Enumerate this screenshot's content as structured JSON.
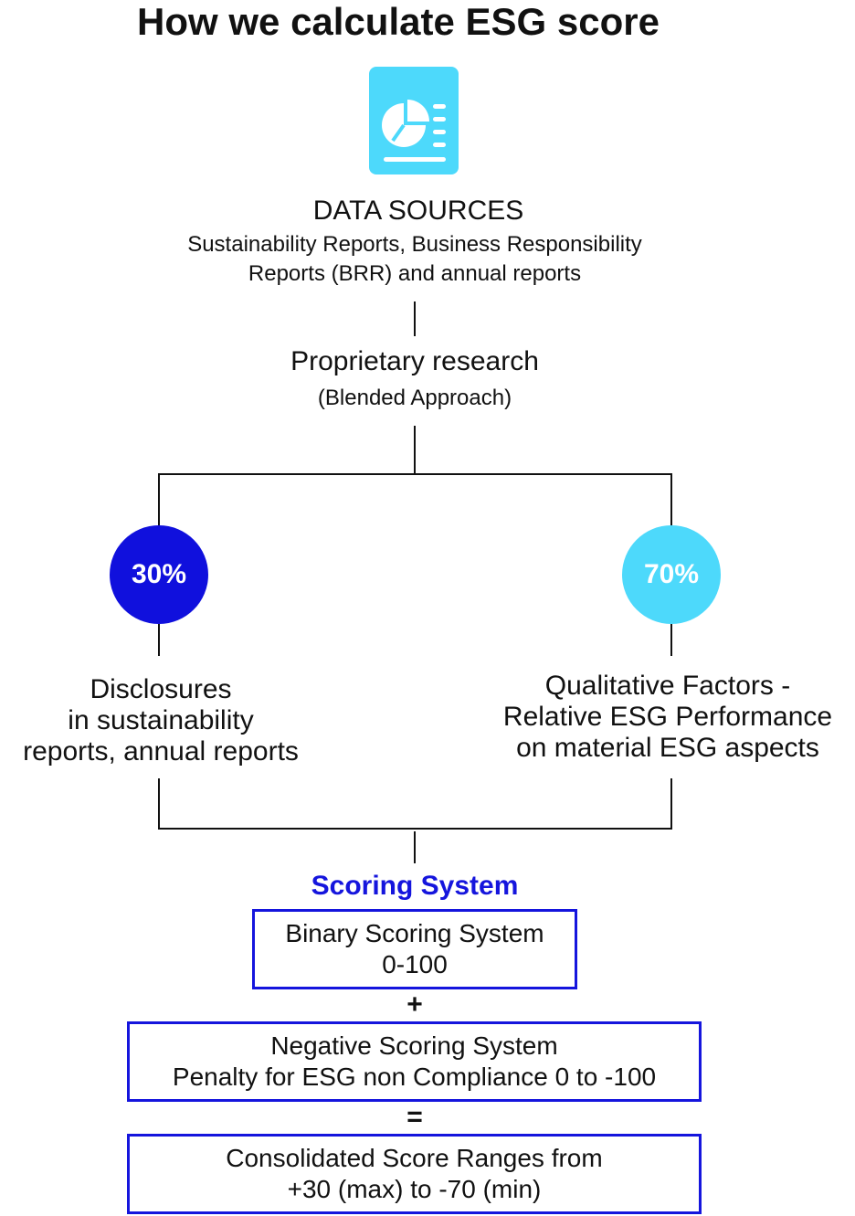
{
  "title": "How we calculate ESG score",
  "icon": {
    "name": "report-pie-chart-icon",
    "color": "#4dd9fb"
  },
  "data_sources": {
    "heading": "DATA SOURCES",
    "lines": [
      "Sustainability Reports, Business Responsibility",
      "Reports (BRR) and annual reports"
    ]
  },
  "research": {
    "heading": "Proprietary research",
    "sub": "(Blended Approach)"
  },
  "branches": {
    "left": {
      "percent": "30%",
      "color": "#1010dd",
      "lines": [
        "Disclosures",
        "in sustainability",
        "reports, annual reports"
      ]
    },
    "right": {
      "percent": "70%",
      "color": "#4dd9fb",
      "lines": [
        "Qualitative Factors -",
        "Relative ESG Performance",
        "on material ESG aspects"
      ]
    }
  },
  "scoring": {
    "title": "Scoring System",
    "title_color": "#1515dd",
    "border_color": "#1515dd",
    "binary": {
      "line1": "Binary Scoring System",
      "line2": "0-100"
    },
    "plus": "+",
    "negative": {
      "line1": "Negative Scoring System",
      "line2": "Penalty for ESG non Compliance 0 to -100"
    },
    "equals": "=",
    "consolidated": {
      "line1": "Consolidated Score Ranges from",
      "line2": "+30 (max) to -70 (min)"
    }
  }
}
